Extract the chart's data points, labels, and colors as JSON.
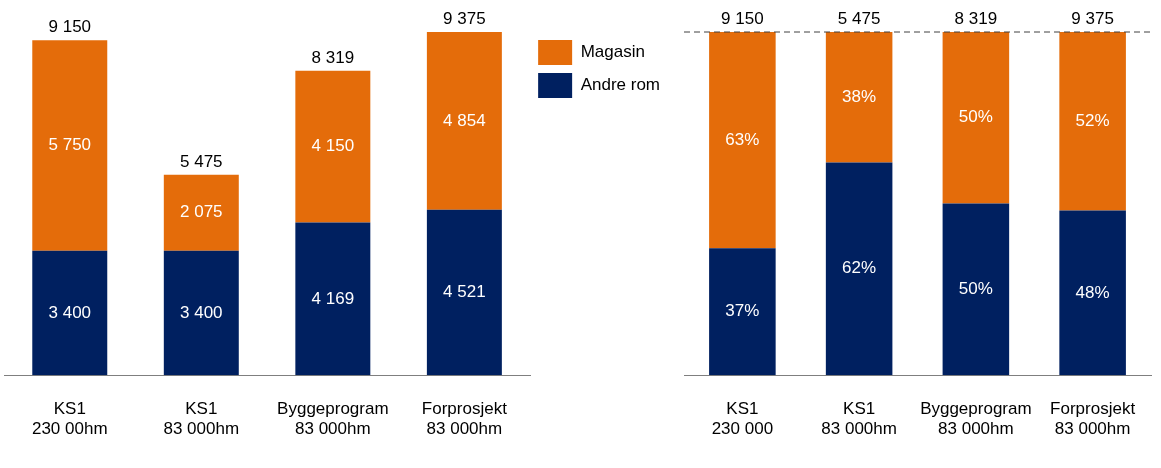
{
  "chart_data": [
    {
      "type": "bar",
      "stacked": true,
      "categories": [
        "KS1\n230 00hm",
        "KS1\n83 000hm",
        "Byggeprogram\n83 000hm",
        "Forprosjekt\n83 000hm"
      ],
      "ylim": [
        0,
        9375
      ],
      "tick_labels": "x",
      "grid": false,
      "legend": "top right",
      "series": [
        {
          "name": "Andre rom",
          "color": "#002060",
          "values": [
            3400,
            3400,
            4169,
            4521
          ],
          "value_labels": [
            "3 400",
            "3 400",
            "4 169",
            "4 521"
          ]
        },
        {
          "name": "Magasin",
          "color": "#e46c0a",
          "values": [
            5750,
            2075,
            4150,
            4854
          ],
          "value_labels": [
            "5 750",
            "2 075",
            "4 150",
            "4 854"
          ]
        }
      ],
      "totals": [
        "9 150",
        "5 475",
        "8 319",
        "9 375"
      ]
    },
    {
      "type": "bar",
      "stacked": true,
      "categories": [
        "KS1\n230 000",
        "KS1\n83 000hm",
        "Byggeprogram\n83 000hm",
        "Forprosjekt\n83 000hm"
      ],
      "ylim": [
        0,
        100
      ],
      "tick_labels": "x",
      "grid": false,
      "series": [
        {
          "color": "#002060",
          "values": [
            37,
            62,
            50,
            48
          ],
          "value_labels": [
            "37%",
            "62%",
            "50%",
            "48%"
          ]
        },
        {
          "color": "#e46c0a",
          "values": [
            63,
            38,
            50,
            52
          ],
          "value_labels": [
            "63%",
            "38%",
            "50%",
            "52%"
          ]
        }
      ],
      "annotations": [
        {
          "text": "9 150",
          "x": "KS1\n230 000",
          "y": 100
        },
        {
          "text": "5 475",
          "x": "KS1\n83 000hm",
          "y": 100
        },
        {
          "text": "8 319",
          "x": "Byggeprogram\n83 000hm",
          "y": 100
        },
        {
          "text": "9 375",
          "x": "Forprosjekt\n83 000hm",
          "y": 100
        }
      ],
      "ref_lines": [
        {
          "axis": "y",
          "value": 100,
          "line_style": "dashed",
          "color": "#404040"
        }
      ]
    }
  ]
}
